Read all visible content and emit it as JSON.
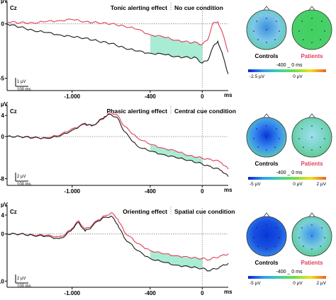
{
  "chart_data": [
    {
      "type": "line",
      "channel": "Cz",
      "title": "Tonic alerting effect",
      "subtitle": "No cue condition",
      "yunit": "µV",
      "xunit": "ms",
      "xlim": [
        -1500,
        200
      ],
      "ylim": [
        -6,
        1.8
      ],
      "yticks": [
        {
          "v": 0,
          "t": "0"
        },
        {
          "v": -5,
          "t": "-5"
        }
      ],
      "xticks": [
        {
          "v": -1000,
          "t": "-1.000"
        },
        {
          "v": -400,
          "t": "-400"
        },
        {
          "v": 0,
          "t": "0"
        }
      ],
      "scalebar": {
        "amp": "1 µV",
        "time": "100 ms"
      },
      "highlight": [
        -400,
        0
      ],
      "highlight_color": "#a9ecd4",
      "series": [
        {
          "name": "Controls",
          "color": "#1a1a1a",
          "x": [
            -1500,
            -1400,
            -1300,
            -1200,
            -1100,
            -1000,
            -900,
            -800,
            -700,
            -600,
            -500,
            -400,
            -300,
            -200,
            -100,
            -50,
            0,
            40,
            80,
            120,
            160,
            200
          ],
          "y": [
            0,
            -0.3,
            -0.6,
            -0.8,
            -1.0,
            -1.2,
            -1.3,
            -1.6,
            -1.8,
            -2.2,
            -2.5,
            -2.7,
            -2.8,
            -3.0,
            -3.1,
            -3.1,
            -3.6,
            -3.4,
            -2.2,
            -1.6,
            -3.0,
            -4.6
          ]
        },
        {
          "name": "Patients",
          "color": "#e0405a",
          "x": [
            -1500,
            -1400,
            -1300,
            -1200,
            -1100,
            -1000,
            -900,
            -800,
            -700,
            -600,
            -500,
            -400,
            -300,
            -200,
            -100,
            -50,
            0,
            40,
            80,
            120,
            160,
            200
          ],
          "y": [
            0.2,
            0.1,
            0.1,
            0.2,
            0.3,
            0.4,
            0.2,
            0.1,
            0.0,
            -0.2,
            -0.5,
            -1.0,
            -1.2,
            -1.5,
            -1.7,
            -1.7,
            -1.9,
            -1.5,
            0.0,
            0.2,
            -1.0,
            -2.6
          ]
        }
      ],
      "maps": {
        "left_label": "Controls",
        "right_label": "Patients",
        "window": "-400 _ 0 ms",
        "scale_min": "-2.5 µV",
        "scale_mid": "0 µV",
        "scale_max": "",
        "left_colors": [
          "#3a8fe0",
          "#7cc6e8",
          "#5fd0a8"
        ],
        "right_colors": [
          "#42d060",
          "#45d065",
          "#4dcf6c"
        ]
      }
    },
    {
      "type": "line",
      "channel": "Cz",
      "title": "Phasic alerting effect",
      "subtitle": "Central cue condition",
      "yunit": "µV",
      "xunit": "ms",
      "xlim": [
        -1500,
        200
      ],
      "ylim": [
        -9,
        5.5
      ],
      "yticks": [
        {
          "v": 4,
          "t": "4"
        },
        {
          "v": 0,
          "t": "0"
        },
        {
          "v": -8,
          "t": "-8"
        }
      ],
      "xticks": [
        {
          "v": -1000,
          "t": "-1.000"
        },
        {
          "v": -400,
          "t": "-400"
        },
        {
          "v": 0,
          "t": "0"
        }
      ],
      "scalebar": {
        "amp": "2 µV",
        "time": "100 ms"
      },
      "highlight": [
        -400,
        0
      ],
      "highlight_color": "#a9ecd4",
      "series": [
        {
          "name": "Controls",
          "color": "#1a1a1a",
          "x": [
            -1500,
            -1400,
            -1300,
            -1200,
            -1100,
            -1000,
            -900,
            -850,
            -800,
            -750,
            -700,
            -650,
            -600,
            -500,
            -400,
            -300,
            -200,
            -100,
            0,
            50,
            100,
            150,
            200
          ],
          "y": [
            0,
            0,
            -0.2,
            -0.3,
            0,
            1.2,
            2.5,
            2.0,
            2.8,
            3.8,
            4.2,
            3.5,
            1.0,
            -1.8,
            -2.8,
            -3.4,
            -4.0,
            -4.5,
            -5.2,
            -5.6,
            -6.0,
            -6.5,
            -7.6
          ]
        },
        {
          "name": "Patients",
          "color": "#e0405a",
          "x": [
            -1500,
            -1400,
            -1300,
            -1200,
            -1100,
            -1000,
            -900,
            -850,
            -800,
            -750,
            -700,
            -650,
            -600,
            -500,
            -400,
            -300,
            -200,
            -100,
            0,
            50,
            100,
            150,
            200
          ],
          "y": [
            0,
            0,
            -0.3,
            -0.2,
            0.2,
            1.5,
            2.3,
            2.1,
            2.7,
            3.6,
            4.6,
            4.0,
            2.0,
            -0.2,
            -1.5,
            -2.2,
            -2.8,
            -3.6,
            -4.1,
            -4.3,
            -4.5,
            -5.0,
            -6.2
          ]
        }
      ],
      "maps": {
        "left_label": "Controls",
        "right_label": "Patients",
        "window": "-400 _ 0 ms",
        "scale_min": "-5 µV",
        "scale_mid": "0 µV",
        "scale_max": "2 µV",
        "left_colors": [
          "#0838d8",
          "#3a8ff0",
          "#5fd0b0"
        ],
        "right_colors": [
          "#9ee0f0",
          "#7ad4c4",
          "#56cc88"
        ]
      }
    },
    {
      "type": "line",
      "channel": "Cz",
      "title": "Orienting effect",
      "subtitle": "Spatial cue condition",
      "yunit": "µV",
      "xunit": "ms",
      "xlim": [
        -1500,
        200
      ],
      "ylim": [
        -11,
        5.5
      ],
      "yticks": [
        {
          "v": 4,
          "t": "4"
        },
        {
          "v": 0,
          "t": "0"
        },
        {
          "v": -10,
          "t": "-10"
        }
      ],
      "xticks": [
        {
          "v": -1000,
          "t": "-1.000"
        },
        {
          "v": -400,
          "t": "-400"
        },
        {
          "v": 0,
          "t": "0"
        }
      ],
      "scalebar": {
        "amp": "2 µV",
        "time": "100 ms"
      },
      "highlight": [
        -400,
        0
      ],
      "highlight_color": "#a9ecd4",
      "series": [
        {
          "name": "Controls",
          "color": "#1a1a1a",
          "x": [
            -1500,
            -1400,
            -1300,
            -1200,
            -1100,
            -1050,
            -1000,
            -950,
            -900,
            -850,
            -800,
            -750,
            -700,
            -650,
            -600,
            -500,
            -400,
            -300,
            -200,
            -100,
            0,
            50,
            100,
            150,
            200
          ],
          "y": [
            0,
            0,
            -0.3,
            -0.5,
            -1.0,
            -0.3,
            1.0,
            2.5,
            0.6,
            1.5,
            2.8,
            3.5,
            3.8,
            2.0,
            -0.8,
            -3.5,
            -5.2,
            -6.0,
            -6.6,
            -7.0,
            -7.3,
            -7.8,
            -7.4,
            -6.8,
            -6.2
          ]
        },
        {
          "name": "Patients",
          "color": "#e0405a",
          "x": [
            -1500,
            -1400,
            -1300,
            -1200,
            -1100,
            -1050,
            -1000,
            -950,
            -900,
            -850,
            -800,
            -750,
            -700,
            -650,
            -600,
            -500,
            -400,
            -300,
            -200,
            -100,
            0,
            50,
            100,
            150,
            200
          ],
          "y": [
            0,
            0,
            -0.2,
            -0.3,
            -0.6,
            0.0,
            1.2,
            2.8,
            1.0,
            1.8,
            3.0,
            3.8,
            4.5,
            3.2,
            0.5,
            -2.0,
            -3.5,
            -4.2,
            -4.6,
            -5.0,
            -5.2,
            -5.5,
            -5.0,
            -4.6,
            -4.2
          ]
        }
      ],
      "maps": {
        "left_label": "Controls",
        "right_label": "Patients",
        "window": "-400 _ 0 ms",
        "scale_min": "-5 µV",
        "scale_mid": "0 µV",
        "scale_max": "2 µV",
        "left_colors": [
          "#0838d8",
          "#1850e0",
          "#3a8fe8"
        ],
        "right_colors": [
          "#3a8ff0",
          "#7ad0d8",
          "#56cc88"
        ]
      }
    }
  ]
}
